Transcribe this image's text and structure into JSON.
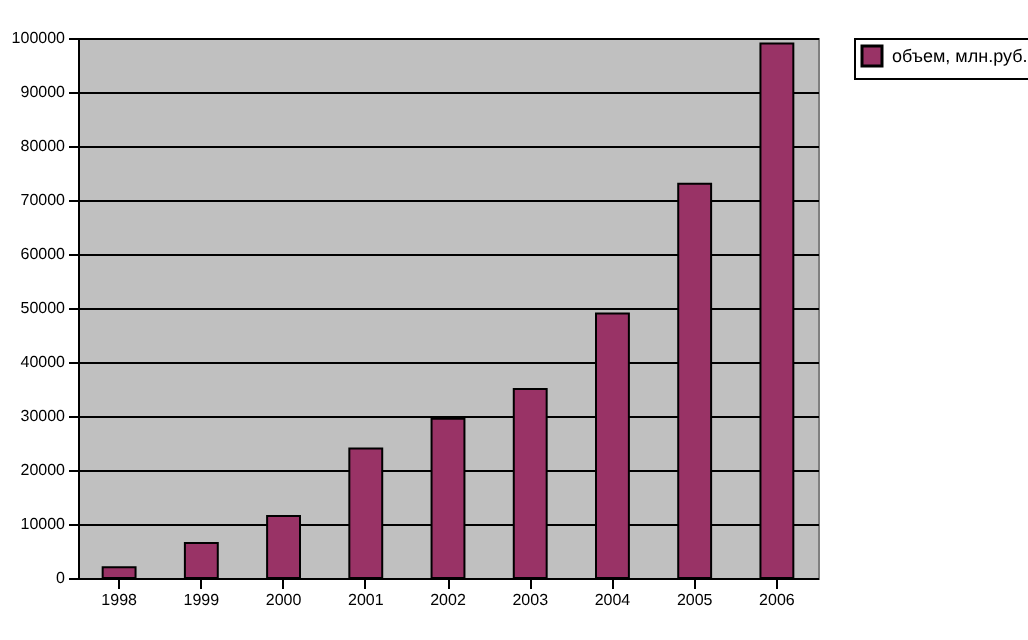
{
  "chart_data": {
    "type": "bar",
    "categories": [
      "1998",
      "1999",
      "2000",
      "2001",
      "2002",
      "2003",
      "2004",
      "2005",
      "2006"
    ],
    "series": [
      {
        "name": "объем, млн.руб.",
        "color": "#993366",
        "values": [
          2000,
          6500,
          11500,
          24000,
          29500,
          35000,
          49000,
          73000,
          99000
        ]
      }
    ],
    "ylim": [
      0,
      100000
    ],
    "yticks": [
      0,
      10000,
      20000,
      30000,
      40000,
      50000,
      60000,
      70000,
      80000,
      90000,
      100000
    ],
    "grid": "y",
    "legend": "right"
  }
}
